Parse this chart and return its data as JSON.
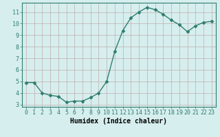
{
  "x": [
    0,
    1,
    2,
    3,
    4,
    5,
    6,
    7,
    8,
    9,
    10,
    11,
    12,
    13,
    14,
    15,
    16,
    17,
    18,
    19,
    20,
    21,
    22,
    23
  ],
  "y": [
    4.9,
    4.9,
    4.0,
    3.8,
    3.7,
    3.2,
    3.3,
    3.3,
    3.6,
    4.0,
    5.0,
    7.6,
    9.4,
    10.5,
    11.0,
    11.4,
    11.2,
    10.8,
    10.3,
    9.9,
    9.3,
    9.8,
    10.1,
    10.2
  ],
  "line_color": "#2e7d6e",
  "marker": "D",
  "marker_size": 2.5,
  "bg_color": "#d6eeee",
  "grid_color": "#c4b8b8",
  "xlabel": "Humidex (Indice chaleur)",
  "xlabel_fontsize": 7,
  "ylim": [
    2.8,
    11.8
  ],
  "xlim": [
    -0.5,
    23.5
  ],
  "yticks": [
    3,
    4,
    5,
    6,
    7,
    8,
    9,
    10,
    11
  ],
  "xticks": [
    0,
    1,
    2,
    3,
    4,
    5,
    6,
    7,
    8,
    9,
    10,
    11,
    12,
    13,
    14,
    15,
    16,
    17,
    18,
    19,
    20,
    21,
    22,
    23
  ],
  "tick_fontsize": 6,
  "linewidth": 1.0
}
